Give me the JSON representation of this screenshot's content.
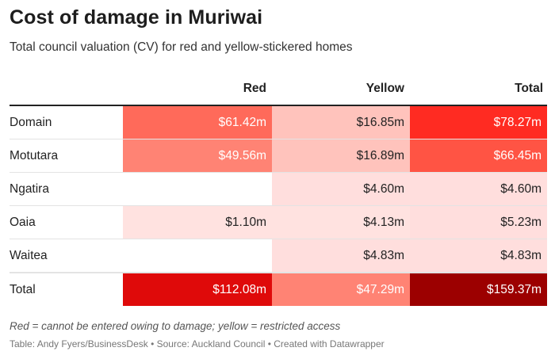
{
  "chart_data": {
    "type": "table",
    "title": "Cost of damage in Muriwai",
    "subtitle": "Total council valuation (CV) for red and yellow-stickered homes",
    "columns": [
      "",
      "Red",
      "Yellow",
      "Total"
    ],
    "rows": [
      {
        "label": "Domain",
        "red": "$61.42m",
        "yellow": "$16.85m",
        "total": "$78.27m",
        "red_value": 61.42,
        "yellow_value": 16.85,
        "total_value": 78.27
      },
      {
        "label": "Motutara",
        "red": "$49.56m",
        "yellow": "$16.89m",
        "total": "$66.45m",
        "red_value": 49.56,
        "yellow_value": 16.89,
        "total_value": 66.45
      },
      {
        "label": "Ngatira",
        "red": "",
        "yellow": "$4.60m",
        "total": "$4.60m",
        "red_value": null,
        "yellow_value": 4.6,
        "total_value": 4.6
      },
      {
        "label": "Oaia",
        "red": "$1.10m",
        "yellow": "$4.13m",
        "total": "$5.23m",
        "red_value": 1.1,
        "yellow_value": 4.13,
        "total_value": 5.23
      },
      {
        "label": "Waitea",
        "red": "",
        "yellow": "$4.83m",
        "total": "$4.83m",
        "red_value": null,
        "yellow_value": 4.83,
        "total_value": 4.83
      },
      {
        "label": "Total",
        "red": "$112.08m",
        "yellow": "$47.29m",
        "total": "$159.37m",
        "red_value": 112.08,
        "yellow_value": 47.29,
        "total_value": 159.37
      }
    ],
    "cell_colors": [
      [
        "#ff6a5a",
        "#ffc3bc",
        "#ff2b22"
      ],
      [
        "#ff8374",
        "#ffc3bc",
        "#ff5444"
      ],
      [
        null,
        "#ffdedd",
        "#ffdedd"
      ],
      [
        "#ffe2e0",
        "#ffe2e0",
        "#ffdedd"
      ],
      [
        null,
        "#ffdedd",
        "#ffdedd"
      ],
      [
        "#df0a0a",
        "#ff8374",
        "#9c0000"
      ]
    ],
    "cell_text_colors": [
      [
        "#ffffff",
        "#222222",
        "#ffffff"
      ],
      [
        "#ffffff",
        "#222222",
        "#ffffff"
      ],
      [
        "#222222",
        "#222222",
        "#222222"
      ],
      [
        "#222222",
        "#222222",
        "#222222"
      ],
      [
        "#222222",
        "#222222",
        "#222222"
      ],
      [
        "#ffffff",
        "#ffffff",
        "#ffffff"
      ]
    ]
  },
  "footer": {
    "note": "Red = cannot be entered owing to damage; yellow = restricted access",
    "source": "Table: Andy Fyers/BusinessDesk • Source: Auckland Council • Created with Datawrapper"
  }
}
